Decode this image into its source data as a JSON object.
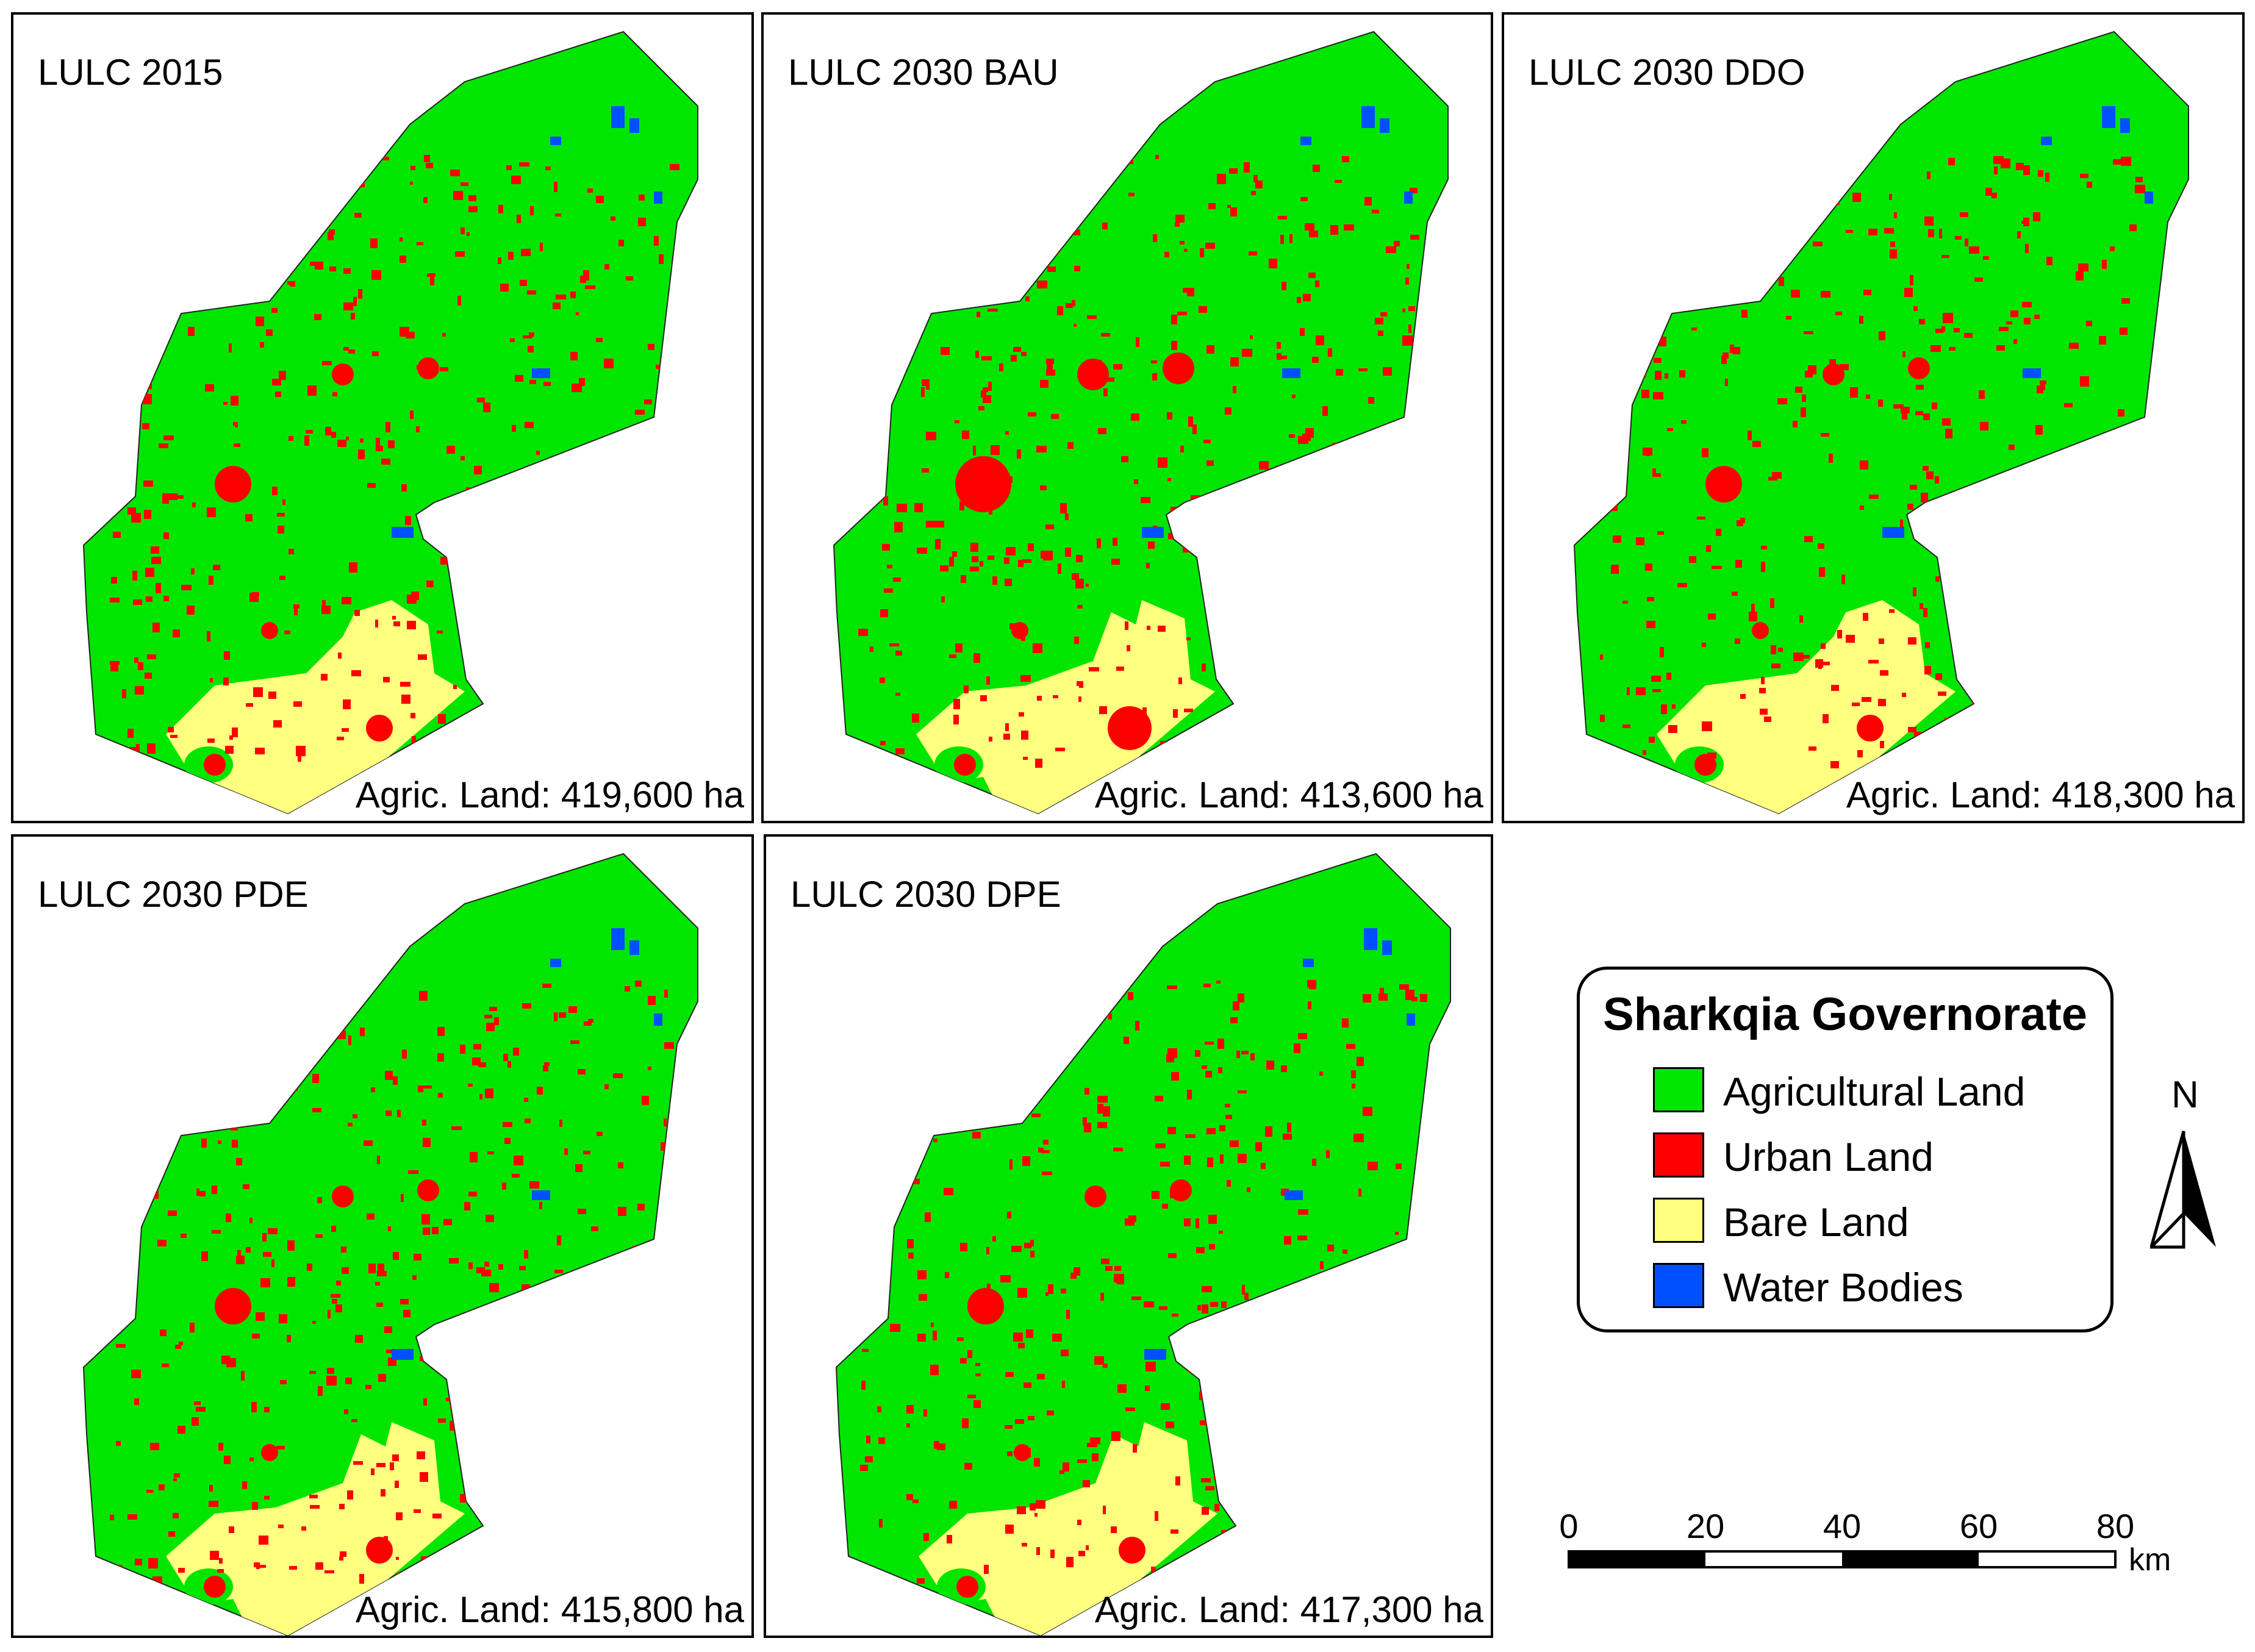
{
  "region_name": "Sharkqia Governorate",
  "colors": {
    "agricultural": "#00e600",
    "urban": "#ff0000",
    "bare": "#ffff80",
    "water": "#0050ff"
  },
  "panels": [
    {
      "title": "LULC 2015",
      "area": "Agric. Land: 419,600 ha",
      "scenario": "2015"
    },
    {
      "title": "LULC 2030 BAU",
      "area": "Agric. Land: 413,600 ha",
      "scenario": "BAU"
    },
    {
      "title": "LULC 2030 DDO",
      "area": "Agric. Land: 418,300 ha",
      "scenario": "DDO"
    },
    {
      "title": "LULC 2030 PDE",
      "area": "Agric. Land: 415,800 ha",
      "scenario": "PDE"
    },
    {
      "title": "LULC 2030 DPE",
      "area": "Agric. Land: 417,300 ha",
      "scenario": "DPE"
    }
  ],
  "legend": {
    "title": "Sharkqia Governorate",
    "items": [
      {
        "label": "Agricultural Land",
        "color": "#00e600"
      },
      {
        "label": "Urban Land",
        "color": "#ff0000"
      },
      {
        "label": "Bare Land",
        "color": "#ffff80"
      },
      {
        "label": "Water Bodies",
        "color": "#0050ff"
      }
    ]
  },
  "north_arrow": {
    "label": "N",
    "icon": "north-arrow-icon"
  },
  "scale_bar": {
    "ticks": [
      "0",
      "20",
      "40",
      "60",
      "80"
    ],
    "unit": "km"
  }
}
